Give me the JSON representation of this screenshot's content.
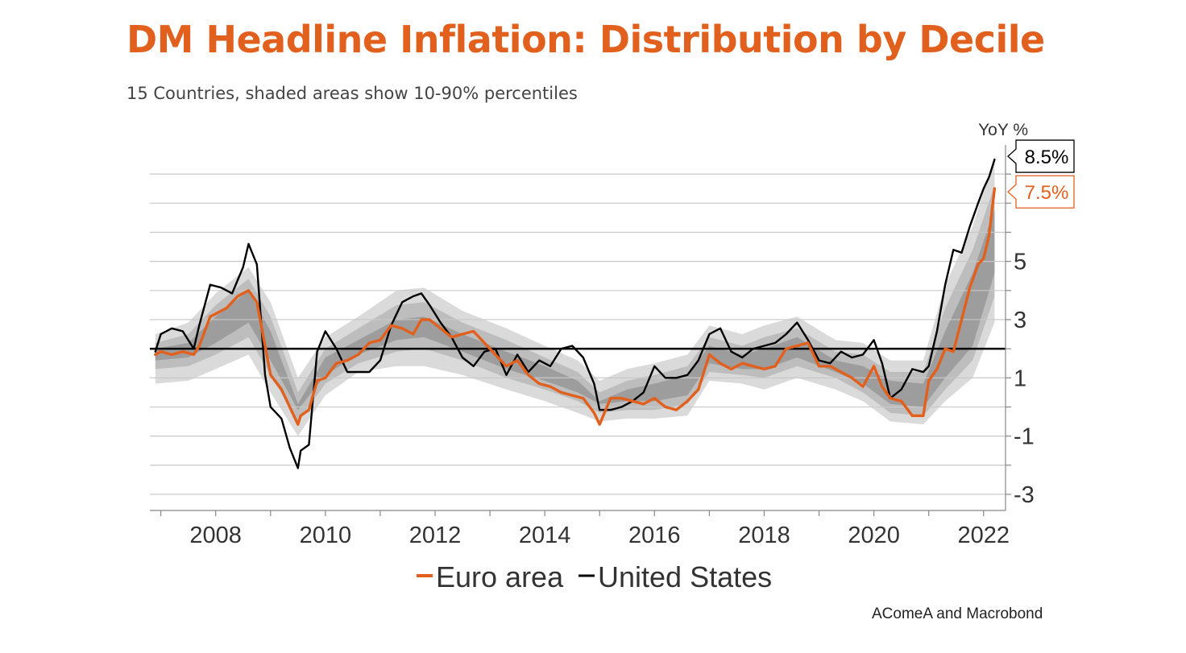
{
  "header": {
    "title": "DM Headline Inflation: Distribution by Decile",
    "subtitle": "15 Countries, shaded areas show 10-90% percentiles"
  },
  "footer": {
    "source": "AComeA and Macrobond"
  },
  "colors": {
    "title": "#e2601e",
    "euro_area": "#e2601e",
    "united_states": "#000000",
    "band_outer": "#dadada",
    "band_mid": "#bdbdbd",
    "band_inner": "#9d9d9d",
    "grid": "#c8c8c8"
  },
  "chart_data": {
    "type": "line",
    "title": "DM Headline Inflation: Distribution by Decile",
    "subtitle": "15 Countries, shaded areas show 10-90% percentiles",
    "ylabel": "YoY %",
    "xlabel": "",
    "ylim": [
      -3.5,
      9
    ],
    "xlim": [
      2006.8,
      2022.4
    ],
    "x_ticks": [
      "2008",
      "2010",
      "2012",
      "2014",
      "2016",
      "2018",
      "2020",
      "2022"
    ],
    "y_ticks": [
      "-3",
      "-1",
      "1",
      "3",
      "5"
    ],
    "reference_line": 2,
    "grid": true,
    "legend_position": "bottom",
    "series": [
      {
        "name": "United States",
        "color": "#000000",
        "x": [
          2006.9,
          2007.0,
          2007.2,
          2007.4,
          2007.6,
          2007.7,
          2007.9,
          2008.1,
          2008.3,
          2008.5,
          2008.6,
          2008.75,
          2008.9,
          2009.0,
          2009.2,
          2009.35,
          2009.5,
          2009.55,
          2009.7,
          2009.85,
          2010.0,
          2010.2,
          2010.4,
          2010.6,
          2010.8,
          2011.0,
          2011.2,
          2011.4,
          2011.6,
          2011.75,
          2011.9,
          2012.1,
          2012.3,
          2012.5,
          2012.7,
          2012.9,
          2013.1,
          2013.3,
          2013.5,
          2013.7,
          2013.9,
          2014.1,
          2014.3,
          2014.5,
          2014.7,
          2014.9,
          2015.0,
          2015.2,
          2015.4,
          2015.6,
          2015.8,
          2016.0,
          2016.2,
          2016.4,
          2016.6,
          2016.8,
          2017.0,
          2017.2,
          2017.4,
          2017.6,
          2017.8,
          2018.0,
          2018.2,
          2018.4,
          2018.6,
          2018.8,
          2019.0,
          2019.2,
          2019.4,
          2019.6,
          2019.8,
          2020.0,
          2020.15,
          2020.3,
          2020.5,
          2020.7,
          2020.9,
          2021.0,
          2021.15,
          2021.3,
          2021.45,
          2021.6,
          2021.75,
          2021.9,
          2022.0,
          2022.1,
          2022.2
        ],
        "y": [
          1.9,
          2.5,
          2.7,
          2.6,
          2.0,
          2.8,
          4.2,
          4.1,
          3.9,
          4.8,
          5.6,
          4.9,
          1.1,
          0.0,
          -0.4,
          -1.4,
          -2.1,
          -1.5,
          -1.3,
          1.9,
          2.6,
          2.0,
          1.2,
          1.2,
          1.2,
          1.6,
          2.8,
          3.6,
          3.8,
          3.9,
          3.5,
          2.9,
          2.4,
          1.7,
          1.4,
          1.9,
          2.0,
          1.1,
          1.8,
          1.2,
          1.6,
          1.4,
          2.0,
          2.1,
          1.7,
          0.8,
          -0.1,
          -0.1,
          0.0,
          0.2,
          0.5,
          1.4,
          1.0,
          1.0,
          1.1,
          1.6,
          2.5,
          2.7,
          1.9,
          1.7,
          2.0,
          2.1,
          2.2,
          2.5,
          2.9,
          2.3,
          1.6,
          1.5,
          1.9,
          1.7,
          1.8,
          2.3,
          1.5,
          0.3,
          0.6,
          1.3,
          1.2,
          1.4,
          2.6,
          4.2,
          5.4,
          5.3,
          6.2,
          7.0,
          7.5,
          7.9,
          8.5
        ]
      },
      {
        "name": "Euro area",
        "color": "#e2601e",
        "x": [
          2006.9,
          2007.0,
          2007.2,
          2007.4,
          2007.6,
          2007.7,
          2007.9,
          2008.0,
          2008.2,
          2008.4,
          2008.6,
          2008.75,
          2008.9,
          2009.0,
          2009.2,
          2009.35,
          2009.5,
          2009.55,
          2009.7,
          2009.85,
          2010.0,
          2010.2,
          2010.4,
          2010.6,
          2010.8,
          2011.0,
          2011.2,
          2011.4,
          2011.6,
          2011.75,
          2011.9,
          2012.1,
          2012.3,
          2012.5,
          2012.7,
          2012.9,
          2013.1,
          2013.3,
          2013.5,
          2013.7,
          2013.9,
          2014.1,
          2014.3,
          2014.5,
          2014.7,
          2014.9,
          2015.0,
          2015.2,
          2015.4,
          2015.6,
          2015.8,
          2016.0,
          2016.2,
          2016.4,
          2016.6,
          2016.8,
          2017.0,
          2017.2,
          2017.4,
          2017.6,
          2017.8,
          2018.0,
          2018.2,
          2018.4,
          2018.6,
          2018.8,
          2019.0,
          2019.2,
          2019.4,
          2019.6,
          2019.8,
          2020.0,
          2020.15,
          2020.3,
          2020.5,
          2020.7,
          2020.9,
          2021.0,
          2021.15,
          2021.3,
          2021.45,
          2021.6,
          2021.75,
          2021.9,
          2022.0,
          2022.1,
          2022.2
        ],
        "y": [
          1.8,
          1.9,
          1.8,
          1.9,
          1.8,
          2.1,
          3.1,
          3.2,
          3.4,
          3.8,
          4.0,
          3.6,
          2.1,
          1.1,
          0.6,
          0.0,
          -0.6,
          -0.3,
          -0.1,
          0.9,
          1.0,
          1.5,
          1.6,
          1.8,
          2.2,
          2.3,
          2.8,
          2.7,
          2.5,
          3.0,
          3.0,
          2.7,
          2.4,
          2.5,
          2.6,
          2.2,
          1.8,
          1.4,
          1.6,
          1.1,
          0.8,
          0.7,
          0.5,
          0.4,
          0.3,
          -0.2,
          -0.6,
          0.3,
          0.3,
          0.2,
          0.1,
          0.3,
          0.0,
          -0.1,
          0.2,
          0.6,
          1.8,
          1.5,
          1.3,
          1.5,
          1.4,
          1.3,
          1.4,
          2.0,
          2.1,
          2.2,
          1.4,
          1.4,
          1.2,
          1.0,
          0.7,
          1.4,
          0.7,
          0.3,
          0.2,
          -0.3,
          -0.3,
          0.9,
          1.3,
          2.0,
          1.9,
          3.0,
          4.1,
          4.9,
          5.1,
          5.9,
          7.5
        ]
      }
    ],
    "shaded_bands": [
      {
        "name": "outer percentile band",
        "color": "#dadada",
        "x": [
          2006.9,
          2007.5,
          2008.0,
          2008.6,
          2009.0,
          2009.5,
          2010.0,
          2010.6,
          2011.3,
          2011.8,
          2012.5,
          2013.3,
          2014.0,
          2014.6,
          2015.0,
          2015.5,
          2016.0,
          2016.6,
          2017.0,
          2017.6,
          2018.0,
          2018.6,
          2019.3,
          2019.8,
          2020.3,
          2020.9,
          2021.3,
          2021.8,
          2022.2
        ],
        "low": [
          0.8,
          0.9,
          1.3,
          1.8,
          0.5,
          -1.0,
          0.4,
          1.2,
          1.4,
          1.4,
          1.1,
          0.6,
          0.2,
          -0.2,
          -0.5,
          -0.4,
          -0.4,
          -0.3,
          0.9,
          0.8,
          0.6,
          1.0,
          0.6,
          0.2,
          -0.5,
          -0.6,
          0.2,
          1.0,
          2.9
        ],
        "high": [
          2.5,
          2.9,
          3.9,
          4.8,
          3.6,
          1.0,
          2.4,
          3.1,
          4.0,
          4.1,
          3.3,
          2.7,
          2.1,
          1.6,
          0.9,
          1.3,
          1.5,
          1.8,
          2.8,
          2.5,
          2.8,
          3.1,
          2.3,
          2.2,
          1.6,
          1.6,
          4.2,
          6.2,
          8.6
        ]
      },
      {
        "name": "middle percentile band",
        "color": "#bdbdbd",
        "x": [
          2006.9,
          2007.5,
          2008.0,
          2008.6,
          2009.0,
          2009.5,
          2010.0,
          2010.6,
          2011.3,
          2011.8,
          2012.5,
          2013.3,
          2014.0,
          2014.6,
          2015.0,
          2015.5,
          2016.0,
          2016.6,
          2017.0,
          2017.6,
          2018.0,
          2018.6,
          2019.3,
          2019.8,
          2020.3,
          2020.9,
          2021.3,
          2021.8,
          2022.2
        ],
        "low": [
          1.3,
          1.4,
          1.8,
          2.4,
          1.1,
          -0.5,
          0.8,
          1.5,
          1.9,
          2.0,
          1.6,
          1.0,
          0.6,
          0.2,
          -0.2,
          -0.1,
          -0.1,
          0.1,
          1.2,
          1.1,
          1.0,
          1.4,
          1.0,
          0.5,
          -0.2,
          -0.3,
          0.6,
          1.6,
          3.8
        ],
        "high": [
          2.2,
          2.5,
          3.5,
          4.4,
          3.1,
          0.5,
          2.0,
          2.7,
          3.5,
          3.6,
          2.9,
          2.3,
          1.7,
          1.2,
          0.5,
          0.9,
          1.1,
          1.4,
          2.4,
          2.1,
          2.4,
          2.7,
          1.9,
          1.8,
          1.2,
          1.2,
          3.4,
          5.4,
          7.6
        ]
      },
      {
        "name": "inner percentile band",
        "color": "#9d9d9d",
        "x": [
          2006.9,
          2007.5,
          2008.0,
          2008.6,
          2009.0,
          2009.5,
          2010.0,
          2010.6,
          2011.3,
          2011.8,
          2012.5,
          2013.3,
          2014.0,
          2014.6,
          2015.0,
          2015.5,
          2016.0,
          2016.6,
          2017.0,
          2017.6,
          2018.0,
          2018.6,
          2019.3,
          2019.8,
          2020.3,
          2020.9,
          2021.3,
          2021.8,
          2022.2
        ],
        "low": [
          1.6,
          1.7,
          2.2,
          2.9,
          1.6,
          -0.1,
          1.1,
          1.8,
          2.3,
          2.4,
          1.9,
          1.3,
          0.9,
          0.5,
          0.1,
          0.2,
          0.2,
          0.4,
          1.5,
          1.3,
          1.3,
          1.7,
          1.2,
          0.8,
          0.1,
          0.0,
          1.0,
          2.1,
          4.6
        ],
        "high": [
          2.0,
          2.2,
          3.1,
          4.0,
          2.6,
          0.1,
          1.7,
          2.3,
          3.0,
          3.1,
          2.5,
          1.9,
          1.4,
          0.9,
          0.2,
          0.6,
          0.8,
          1.1,
          2.1,
          1.8,
          2.0,
          2.4,
          1.6,
          1.4,
          0.9,
          0.8,
          2.6,
          4.6,
          6.8
        ]
      }
    ],
    "annotations": [
      {
        "series": "United States",
        "label": "8.5%",
        "value": 8.5
      },
      {
        "series": "Euro area",
        "label": "7.5%",
        "value": 7.5
      }
    ]
  }
}
